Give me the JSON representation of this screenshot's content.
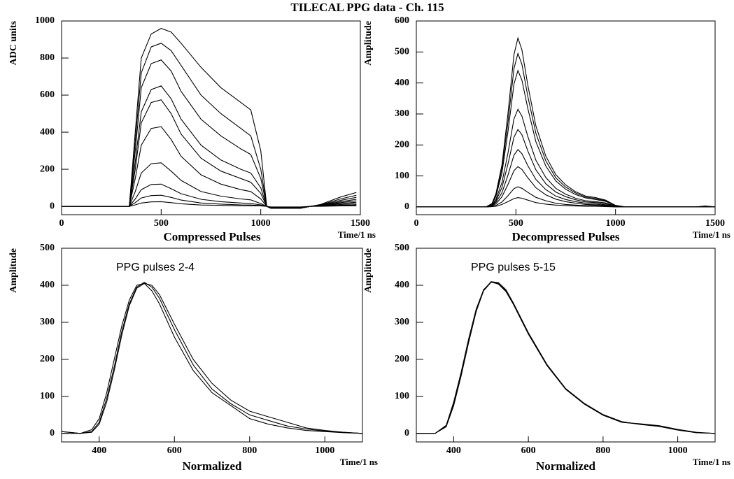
{
  "title": "TILECAL PPG data - Ch. 115",
  "chart_data": [
    {
      "type": "line",
      "ylabel": "ADC units",
      "xlabel": "Time/1 ns",
      "xlim": [
        0,
        1500
      ],
      "ylim": [
        -45,
        1000
      ],
      "xticks": [
        0,
        500,
        1000,
        1500
      ],
      "yticks": [
        0,
        200,
        400,
        600,
        800,
        1000
      ],
      "x": [
        0,
        340,
        370,
        400,
        450,
        500,
        550,
        600,
        700,
        800,
        900,
        950,
        1000,
        1030,
        1050,
        1200,
        1250,
        1300,
        1400,
        1480
      ],
      "series": [
        {
          "color": "#000000",
          "values": [
            0,
            0,
            400,
            800,
            930,
            960,
            940,
            880,
            750,
            640,
            560,
            520,
            300,
            0,
            -10,
            -10,
            0,
            10,
            50,
            75
          ]
        },
        {
          "color": "#000000",
          "values": [
            0,
            0,
            350,
            720,
            860,
            880,
            840,
            760,
            600,
            500,
            420,
            380,
            200,
            0,
            -10,
            -10,
            0,
            8,
            40,
            60
          ]
        },
        {
          "color": "#000000",
          "values": [
            0,
            0,
            300,
            640,
            770,
            790,
            730,
            620,
            470,
            380,
            310,
            280,
            150,
            0,
            -10,
            -10,
            0,
            6,
            32,
            48
          ]
        },
        {
          "color": "#000000",
          "values": [
            0,
            0,
            240,
            510,
            630,
            650,
            580,
            470,
            330,
            250,
            200,
            180,
            100,
            0,
            -10,
            -10,
            0,
            5,
            25,
            38
          ]
        },
        {
          "color": "#000000",
          "values": [
            0,
            0,
            200,
            450,
            560,
            575,
            500,
            390,
            260,
            190,
            150,
            130,
            70,
            0,
            -10,
            -10,
            0,
            4,
            20,
            30
          ]
        },
        {
          "color": "#000000",
          "values": [
            0,
            0,
            150,
            330,
            420,
            430,
            360,
            270,
            170,
            120,
            90,
            80,
            40,
            0,
            -10,
            -10,
            0,
            3,
            15,
            22
          ]
        },
        {
          "color": "#000000",
          "values": [
            0,
            0,
            80,
            180,
            230,
            235,
            190,
            140,
            80,
            55,
            40,
            35,
            15,
            0,
            -10,
            -10,
            0,
            2,
            10,
            15
          ]
        },
        {
          "color": "#000000",
          "values": [
            0,
            0,
            40,
            90,
            118,
            120,
            95,
            68,
            38,
            25,
            18,
            15,
            8,
            0,
            -8,
            -8,
            0,
            1,
            6,
            9
          ]
        },
        {
          "color": "#000000",
          "values": [
            0,
            0,
            20,
            45,
            58,
            60,
            48,
            34,
            18,
            12,
            8,
            7,
            4,
            0,
            -5,
            -5,
            0,
            1,
            4,
            5
          ]
        },
        {
          "color": "#000000",
          "values": [
            0,
            0,
            8,
            18,
            24,
            25,
            20,
            14,
            7,
            5,
            3,
            3,
            2,
            0,
            -3,
            -3,
            0,
            0,
            2,
            3
          ]
        }
      ]
    },
    {
      "type": "line",
      "ylabel": "Amplitude",
      "xlabel": "Time/1 ns",
      "xlim": [
        0,
        1500
      ],
      "ylim": [
        -25,
        600
      ],
      "xticks": [
        0,
        500,
        1000,
        1500
      ],
      "yticks": [
        0,
        100,
        200,
        300,
        400,
        500,
        600
      ],
      "x": [
        0,
        350,
        380,
        400,
        430,
        460,
        490,
        510,
        530,
        560,
        600,
        650,
        700,
        750,
        800,
        850,
        900,
        950,
        1000,
        1050,
        1400,
        1450,
        1500
      ],
      "series": [
        {
          "color": "#000000",
          "values": [
            0,
            0,
            11,
            44,
            136,
            300,
            491,
            545,
            507,
            392,
            262,
            164,
            104,
            71,
            49,
            35,
            30,
            22,
            5,
            0,
            0,
            3,
            0
          ]
        },
        {
          "color": "#000000",
          "values": [
            0,
            0,
            10,
            40,
            124,
            272,
            446,
            495,
            460,
            356,
            238,
            149,
            94,
            64,
            45,
            32,
            27,
            20,
            5,
            0,
            0,
            2,
            0
          ]
        },
        {
          "color": "#000000",
          "values": [
            0,
            0,
            9,
            35,
            110,
            242,
            396,
            440,
            409,
            317,
            211,
            132,
            84,
            57,
            40,
            29,
            24,
            18,
            4,
            0,
            0,
            2,
            0
          ]
        },
        {
          "color": "#000000",
          "values": [
            0,
            0,
            6,
            25,
            79,
            173,
            284,
            315,
            293,
            227,
            151,
            95,
            60,
            41,
            28,
            20,
            17,
            13,
            3,
            0,
            0,
            2,
            0
          ]
        },
        {
          "color": "#000000",
          "values": [
            0,
            0,
            5,
            20,
            63,
            138,
            225,
            250,
            233,
            180,
            120,
            75,
            48,
            33,
            23,
            16,
            14,
            10,
            3,
            0,
            0,
            1,
            0
          ]
        },
        {
          "color": "#000000",
          "values": [
            0,
            0,
            4,
            15,
            46,
            102,
            167,
            185,
            172,
            133,
            89,
            56,
            35,
            24,
            17,
            12,
            10,
            7,
            2,
            0,
            0,
            1,
            0
          ]
        },
        {
          "color": "#000000",
          "values": [
            0,
            0,
            3,
            10,
            33,
            72,
            117,
            130,
            121,
            94,
            62,
            39,
            25,
            17,
            12,
            8,
            7,
            5,
            1,
            0,
            0,
            1,
            0
          ]
        },
        {
          "color": "#000000",
          "values": [
            0,
            0,
            1,
            5,
            16,
            36,
            59,
            65,
            60,
            47,
            31,
            20,
            12,
            8,
            6,
            4,
            4,
            3,
            1,
            0,
            0,
            0,
            0
          ]
        },
        {
          "color": "#000000",
          "values": [
            0,
            0,
            1,
            2,
            8,
            17,
            27,
            30,
            28,
            22,
            14,
            9,
            6,
            4,
            3,
            2,
            2,
            1,
            0,
            0,
            0,
            0,
            0
          ]
        }
      ]
    },
    {
      "type": "line",
      "title": "Compressed Pulses",
      "caption": "Normalized",
      "ylabel": "Amplitude",
      "xlabel": "Time/1 ns",
      "annotation": "PPG pulses 2-4",
      "xlim": [
        300,
        1100
      ],
      "ylim": [
        -23,
        500
      ],
      "xticks": [
        400,
        600,
        800,
        1000
      ],
      "yticks": [
        0,
        100,
        200,
        300,
        400,
        500
      ],
      "x": [
        300,
        350,
        380,
        400,
        420,
        440,
        460,
        480,
        500,
        520,
        540,
        560,
        600,
        650,
        700,
        750,
        800,
        850,
        900,
        950,
        1000,
        1050,
        1100
      ],
      "series": [
        {
          "color": "#000000",
          "values": [
            5,
            0,
            10,
            40,
            110,
            200,
            290,
            360,
            400,
            405,
            385,
            350,
            260,
            170,
            110,
            75,
            40,
            25,
            15,
            8,
            5,
            2,
            0
          ]
        },
        {
          "color": "#000000",
          "values": [
            5,
            0,
            5,
            30,
            95,
            180,
            275,
            350,
            395,
            408,
            395,
            365,
            280,
            185,
            120,
            80,
            50,
            35,
            20,
            12,
            6,
            3,
            0
          ]
        },
        {
          "color": "#000000",
          "values": [
            0,
            0,
            3,
            25,
            85,
            170,
            265,
            345,
            392,
            405,
            400,
            375,
            295,
            200,
            135,
            90,
            60,
            45,
            30,
            15,
            8,
            3,
            0
          ]
        }
      ]
    },
    {
      "type": "line",
      "title": "Decompressed Pulses",
      "caption": "Normalized",
      "ylabel": "Amplitude",
      "xlabel": "Time/1 ns",
      "annotation": "PPG pulses 5-15",
      "xlim": [
        300,
        1100
      ],
      "ylim": [
        -23,
        500
      ],
      "xticks": [
        400,
        600,
        800,
        1000
      ],
      "yticks": [
        0,
        100,
        200,
        300,
        400,
        500
      ],
      "x": [
        300,
        350,
        380,
        400,
        420,
        440,
        460,
        480,
        500,
        520,
        540,
        560,
        600,
        650,
        700,
        750,
        800,
        850,
        900,
        950,
        1000,
        1050,
        1100
      ],
      "series": [
        {
          "color": "#000000",
          "values": [
            0,
            0,
            20,
            80,
            160,
            250,
            330,
            385,
            408,
            405,
            385,
            350,
            270,
            185,
            120,
            80,
            50,
            30,
            25,
            20,
            10,
            2,
            0
          ]
        },
        {
          "color": "#000000",
          "values": [
            0,
            0,
            18,
            75,
            155,
            245,
            328,
            386,
            410,
            407,
            388,
            352,
            272,
            186,
            121,
            81,
            51,
            32,
            24,
            19,
            9,
            2,
            0
          ]
        },
        {
          "color": "#000000",
          "values": [
            0,
            0,
            22,
            85,
            165,
            255,
            335,
            388,
            409,
            403,
            383,
            348,
            268,
            183,
            119,
            79,
            49,
            30,
            26,
            21,
            11,
            3,
            0
          ]
        }
      ]
    }
  ]
}
